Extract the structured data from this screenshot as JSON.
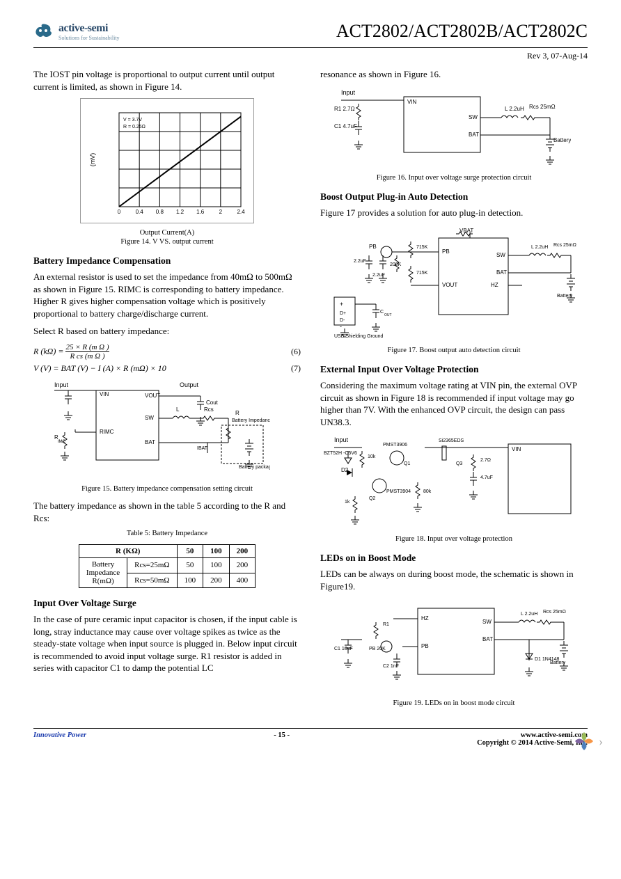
{
  "header": {
    "brand": "active-semi",
    "tagline": "Solutions for Sustainability",
    "title": "ACT2802/ACT2802B/ACT2802C",
    "rev": "Rev 3, 07-Aug-14"
  },
  "left": {
    "intro": "The IOST pin voltage is proportional to output current until output current is limited, as shown in Figure 14.",
    "fig14": {
      "type": "line",
      "caption": "Figure 14.   V      VS. output current",
      "xlabel": "Output Current(A)",
      "ylabel": "(mV)",
      "xlim": [
        0,
        2.4
      ],
      "ylim": [
        0,
        750
      ],
      "xticks": [
        "0",
        "0.4",
        "0.8",
        "1.2",
        "1.6",
        "2",
        "2.4"
      ],
      "yticks_count": 5,
      "legend": "V    = 3.7V\nR    = 0.25Ω",
      "line_color": "#000000",
      "grid_color": "#444444",
      "background": "#ffffff",
      "points": [
        [
          0,
          0
        ],
        [
          2.4,
          720
        ]
      ]
    },
    "sec_batt_imp": {
      "heading": "Battery Impedance Compensation",
      "p1": "An  external resistor is used to set the impedance from 40mΩ to 500mΩ as shown in Figure 15. RIMC is corresponding to battery impedance. Higher R     gives higher compensation voltage which is positively proportional to battery charge/discharge current.",
      "p2": "Select R        based on battery impedance:",
      "eq6_lhs": "R     (kΩ) =",
      "eq6_num": "25  × R  (m Ω )",
      "eq6_den": "R cs  (m  Ω )",
      "eq6_no": "(6)",
      "eq7": "V     (V) = BAT (V) − I    (A) × R (mΩ) × 10",
      "eq7_no": "(7)"
    },
    "fig15": {
      "caption": "Figure 15.   Battery impedance compensation setting circuit",
      "labels": {
        "input": "Input",
        "output": "Output",
        "vin": "VIN",
        "vout": "VOUT",
        "cout": "Cout",
        "sw": "SW",
        "L": "L",
        "rcs": "Rcs",
        "rimc_pin": "RIMC",
        "rimc_r": "R",
        "rimc_sub": "IMC",
        "bat": "BAT",
        "rb": "R",
        "rb_lbl": "Battery Impedance",
        "ibat": "IBAT",
        "batt_pkg": "Battery package"
      }
    },
    "after_fig15": "The battery impedance as shown in the table 5 according to the R          and Rcs:",
    "table5": {
      "caption": "Table 5: Battery Impedance",
      "header_left": "R     (KΩ)",
      "header_vals": [
        "50",
        "100",
        "200"
      ],
      "row1_left_top": "Battery",
      "row1_left_mid": "Impedance",
      "row1_left_bot": "R(mΩ)",
      "row_a_label": "Rcs=25mΩ",
      "row_a_vals": [
        "50",
        "100",
        "200"
      ],
      "row_b_label": "Rcs=50mΩ",
      "row_b_vals": [
        "100",
        "200",
        "400"
      ]
    },
    "sec_surge": {
      "heading": "Input Over Voltage Surge",
      "p": "In the case of pure ceramic input capacitor is chosen, if the input cable is long, stray inductance may cause over voltage spikes as twice as the steady-state voltage when input source is plugged in. Below input circuit is recommended to avoid input voltage surge. R1 resistor is added in series with capacitor C1 to damp the potential LC"
    }
  },
  "right": {
    "cont": "resonance as shown in Figure 16.",
    "fig16": {
      "caption": "Figure 16.   Input over voltage surge protection circuit",
      "labels": {
        "input": "Input",
        "vin": "VIN",
        "r1": "R1 2.7Ω",
        "c1": "C1 4.7uF",
        "sw": "SW",
        "bat": "BAT",
        "L": "L 2.2uH",
        "rcs": "Rcs 25mΩ",
        "batt": "Battery"
      }
    },
    "sec_boost": {
      "heading": "Boost Output Plug-in Auto Detection",
      "p": "Figure 17 provides a solution for auto plug-in detection."
    },
    "fig17": {
      "caption": "Figure 17.   Boost output auto detection circuit",
      "labels": {
        "vbat": "VBAT",
        "pb": "PB",
        "r719a": "715K",
        "r719b": "715K",
        "r200": "200K",
        "c22a": "2.2uF",
        "c22b": "2.2uF",
        "vout": "VOUT",
        "hz": "HZ",
        "sw": "SW",
        "bat": "BAT",
        "L": "L 2.2uH",
        "rcs": "Rcs 25mΩ",
        "batt": "Battery",
        "cout": "C",
        "cout_sub": "OUT",
        "usb_ground": "USB Shielding Ground",
        "dp": "D+",
        "dn": "D-"
      }
    },
    "sec_ext_ovp": {
      "heading": "External Input Over Voltage Protection",
      "p": "Considering the maximum voltage rating at VIN pin, the external OVP circuit as shown in Figure 18 is recommended if input voltage may go higher than 7V. With the enhanced OVP circuit, the design can pass UN38.3."
    },
    "fig18": {
      "caption": "Figure 18.   Input over voltage protection",
      "labels": {
        "input": "Input",
        "bzt": "BZT52H -C5V6",
        "d2": "D2",
        "r10k": "10k",
        "q1": "Q1",
        "pmst3906": "PMST3906",
        "q2": "Q2",
        "pmst3904": "PMST3904",
        "r1k": "1k",
        "r80k": "80k",
        "q3": "Q3",
        "si2365": "Si2365EDS",
        "r27": "2.7Ω",
        "c47": "4.7uF",
        "vin": "VIN"
      }
    },
    "sec_leds": {
      "heading": "LEDs on in Boost Mode",
      "p": "LEDs can be always on during boost mode, the schematic is shown in Figure19."
    },
    "fig19": {
      "caption": "Figure 19.   LEDs on in boost mode circuit",
      "labels": {
        "hz": "HZ",
        "sw": "SW",
        "bat": "BAT",
        "pb": "PB",
        "r1": "R1",
        "pb20k": "PB 20K",
        "c1": "C1 10uF",
        "c2": "C2 1nF",
        "L": "L 2.2uH",
        "rcs": "Rcs 25mΩ",
        "batt": "Battery",
        "d1": "D1 1N4148"
      }
    }
  },
  "footer": {
    "left": "Innovative Power",
    "center": "- 15 -",
    "right_url": "www.active-semi.com",
    "right_copy": "Copyright © 2014 Active-Semi, Inc."
  },
  "colors": {
    "text": "#000000",
    "link": "#1a3aad",
    "logo": "#2a4a6a",
    "corner_colors": [
      "#9bbb59",
      "#4f81bd",
      "#f79646",
      "#8064a2"
    ]
  }
}
